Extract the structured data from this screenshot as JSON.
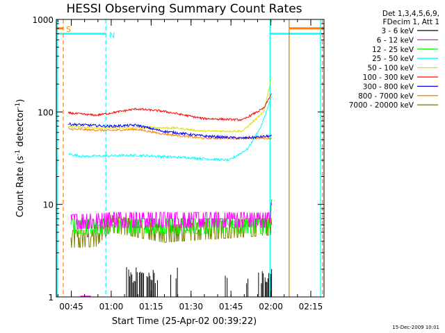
{
  "chart_data": {
    "type": "line",
    "title": "HESSI Observing Summary Count Rates",
    "xlabel": "Start Time (25-Apr-02 00:39:22)",
    "ylabel_main": "Count Rate (s",
    "ylabel_sup1": "-1",
    "ylabel_mid": " detector",
    "ylabel_sup2": "-1",
    "ylabel_end": ")",
    "y_scale": "log",
    "ylim": [
      1,
      1000
    ],
    "xlim_minutes": [
      0,
      100.6
    ],
    "x_tick_labels": [
      "00:45",
      "01:00",
      "01:15",
      "01:30",
      "01:45",
      "02:00",
      "02:15"
    ],
    "x_tick_minutes": [
      5.63,
      20.63,
      35.63,
      50.63,
      65.63,
      80.63,
      95.63
    ],
    "y_tick_labels": [
      "1",
      "10",
      "100",
      "1000"
    ],
    "y_tick_values": [
      1,
      10,
      100,
      1000
    ],
    "legend_position": "top-right",
    "legend_header": [
      "Det 1,3,4,5,6,9,",
      "FDecim 1, Att 1"
    ],
    "footer_timestamp": "15-Dec-2009 10:01",
    "series": [
      {
        "name": "3 - 6 keV",
        "color": "#000000"
      },
      {
        "name": "6 - 12 keV",
        "color": "#ff00ff"
      },
      {
        "name": "12 - 25 keV",
        "color": "#00ff00"
      },
      {
        "name": "25 - 50 keV",
        "color": "#00ffff"
      },
      {
        "name": "50 - 100 keV",
        "color": "#e0e000"
      },
      {
        "name": "100 - 300 keV",
        "color": "#ff0000"
      },
      {
        "name": "300 - 800 keV",
        "color": "#0000ff"
      },
      {
        "name": "800 - 7000 keV",
        "color": "#ff8000"
      },
      {
        "name": "7000 - 20000 keV",
        "color": "#808000"
      }
    ],
    "approx_levels": {
      "100 - 300 keV": {
        "x": [
          0,
          15,
          30,
          40,
          55,
          70,
          78,
          81
        ],
        "y": [
          100,
          92,
          108,
          102,
          85,
          82,
          110,
          160
        ]
      },
      "300 - 800 keV": {
        "x": [
          0,
          20,
          30,
          40,
          55,
          70,
          81
        ],
        "y": [
          75,
          70,
          72,
          62,
          55,
          52,
          55
        ]
      },
      "50 - 100 keV": {
        "x": [
          0,
          20,
          35,
          45,
          55,
          70,
          78,
          81
        ],
        "y": [
          70,
          67,
          68,
          67,
          62,
          62,
          100,
          250
        ]
      },
      "800 - 7000 keV": {
        "x": [
          0,
          20,
          30,
          40,
          55,
          70,
          81
        ],
        "y": [
          66,
          63,
          65,
          58,
          52,
          52,
          52
        ]
      },
      "25 - 50 keV": {
        "x": [
          0,
          10,
          30,
          50,
          65,
          72,
          77,
          81
        ],
        "y": [
          37,
          33,
          34,
          32,
          30,
          40,
          70,
          150
        ]
      },
      "6 - 12 keV": {
        "x": [
          0,
          20,
          80,
          81
        ],
        "y": [
          6.5,
          7,
          7,
          10
        ]
      },
      "12 - 25 keV": {
        "x": [
          0,
          20,
          80,
          81
        ],
        "y": [
          6,
          6,
          6,
          10
        ]
      },
      "7000 - 20000 keV": {
        "x": [
          0,
          15,
          20,
          40,
          81
        ],
        "y": [
          4.3,
          4.5,
          6.5,
          5,
          6
        ]
      }
    },
    "markers": [
      {
        "label": "S",
        "color": "#ff8000"
      },
      {
        "label": "N",
        "color": "#00ffff"
      }
    ]
  }
}
